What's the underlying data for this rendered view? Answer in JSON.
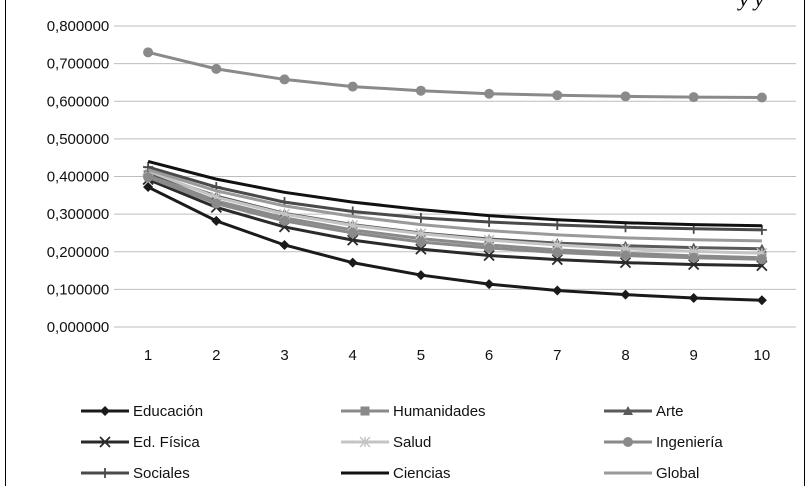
{
  "top_caption": "y y",
  "chart_data": {
    "type": "line",
    "x": [
      1,
      2,
      3,
      4,
      5,
      6,
      7,
      8,
      9,
      10
    ],
    "ylim": [
      0,
      0.8
    ],
    "y_ticks": [
      "0,000000",
      "0,100000",
      "0,200000",
      "0,300000",
      "0,400000",
      "0,500000",
      "0,600000",
      "0,700000",
      "0,800000"
    ],
    "x_ticks": [
      "1",
      "2",
      "3",
      "4",
      "5",
      "6",
      "7",
      "8",
      "9",
      "10"
    ],
    "grid": "horizontal",
    "legend_position": "bottom",
    "series": [
      {
        "name": "Educación",
        "marker": "diamond",
        "color": "#1a1a1a",
        "values": [
          0.372,
          0.282,
          0.218,
          0.171,
          0.138,
          0.114,
          0.097,
          0.086,
          0.077,
          0.071
        ]
      },
      {
        "name": "Humanidades",
        "marker": "square",
        "color": "#8a8a8a",
        "values": [
          0.405,
          0.335,
          0.29,
          0.258,
          0.235,
          0.218,
          0.205,
          0.196,
          0.189,
          0.184
        ]
      },
      {
        "name": "Arte",
        "marker": "triangle",
        "color": "#5a5a5a",
        "values": [
          0.41,
          0.348,
          0.302,
          0.272,
          0.25,
          0.234,
          0.223,
          0.216,
          0.211,
          0.208
        ]
      },
      {
        "name": "Ed. Física",
        "marker": "x",
        "color": "#2a2a2a",
        "values": [
          0.392,
          0.318,
          0.266,
          0.231,
          0.207,
          0.19,
          0.179,
          0.171,
          0.166,
          0.163
        ]
      },
      {
        "name": "Salud",
        "marker": "asterisk",
        "color": "#c4c4c4",
        "values": [
          0.415,
          0.345,
          0.3,
          0.27,
          0.248,
          0.231,
          0.218,
          0.208,
          0.201,
          0.196
        ]
      },
      {
        "name": "Ingeniería",
        "marker": "circle",
        "color": "#8a8a8a",
        "values": [
          0.398,
          0.328,
          0.282,
          0.25,
          0.226,
          0.21,
          0.198,
          0.19,
          0.184,
          0.18
        ]
      },
      {
        "name": "Sociales",
        "marker": "plus",
        "color": "#4a4a4a",
        "values": [
          0.425,
          0.372,
          0.332,
          0.307,
          0.29,
          0.279,
          0.271,
          0.265,
          0.261,
          0.258
        ]
      },
      {
        "name": "Ciencias",
        "marker": "none",
        "color": "#111111",
        "values": [
          0.44,
          0.393,
          0.358,
          0.332,
          0.312,
          0.296,
          0.285,
          0.277,
          0.272,
          0.269
        ]
      },
      {
        "name": "Global",
        "marker": "none",
        "color": "#9a9a9a",
        "values": [
          0.418,
          0.362,
          0.322,
          0.294,
          0.272,
          0.256,
          0.245,
          0.237,
          0.232,
          0.229
        ]
      },
      {
        "name": "",
        "marker": "circle",
        "color": "#8a8a8a",
        "values": [
          0.73,
          0.686,
          0.658,
          0.639,
          0.628,
          0.62,
          0.616,
          0.613,
          0.611,
          0.61
        ]
      }
    ]
  }
}
